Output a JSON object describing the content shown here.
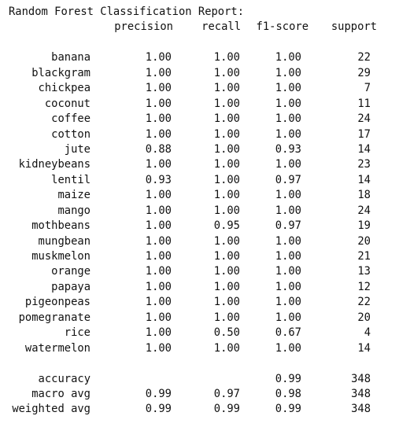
{
  "report": {
    "title": "Random Forest Classification Report:",
    "headers": {
      "precision": "precision",
      "recall": "recall",
      "f1": "f1-score",
      "support": "support"
    },
    "rows": [
      {
        "label": "banana",
        "precision": "1.00",
        "recall": "1.00",
        "f1": "1.00",
        "support": "22"
      },
      {
        "label": "blackgram",
        "precision": "1.00",
        "recall": "1.00",
        "f1": "1.00",
        "support": "29"
      },
      {
        "label": "chickpea",
        "precision": "1.00",
        "recall": "1.00",
        "f1": "1.00",
        "support": "7"
      },
      {
        "label": "coconut",
        "precision": "1.00",
        "recall": "1.00",
        "f1": "1.00",
        "support": "11"
      },
      {
        "label": "coffee",
        "precision": "1.00",
        "recall": "1.00",
        "f1": "1.00",
        "support": "24"
      },
      {
        "label": "cotton",
        "precision": "1.00",
        "recall": "1.00",
        "f1": "1.00",
        "support": "17"
      },
      {
        "label": "jute",
        "precision": "0.88",
        "recall": "1.00",
        "f1": "0.93",
        "support": "14"
      },
      {
        "label": "kidneybeans",
        "precision": "1.00",
        "recall": "1.00",
        "f1": "1.00",
        "support": "23"
      },
      {
        "label": "lentil",
        "precision": "0.93",
        "recall": "1.00",
        "f1": "0.97",
        "support": "14"
      },
      {
        "label": "maize",
        "precision": "1.00",
        "recall": "1.00",
        "f1": "1.00",
        "support": "18"
      },
      {
        "label": "mango",
        "precision": "1.00",
        "recall": "1.00",
        "f1": "1.00",
        "support": "24"
      },
      {
        "label": "mothbeans",
        "precision": "1.00",
        "recall": "0.95",
        "f1": "0.97",
        "support": "19"
      },
      {
        "label": "mungbean",
        "precision": "1.00",
        "recall": "1.00",
        "f1": "1.00",
        "support": "20"
      },
      {
        "label": "muskmelon",
        "precision": "1.00",
        "recall": "1.00",
        "f1": "1.00",
        "support": "21"
      },
      {
        "label": "orange",
        "precision": "1.00",
        "recall": "1.00",
        "f1": "1.00",
        "support": "13"
      },
      {
        "label": "papaya",
        "precision": "1.00",
        "recall": "1.00",
        "f1": "1.00",
        "support": "12"
      },
      {
        "label": "pigeonpeas",
        "precision": "1.00",
        "recall": "1.00",
        "f1": "1.00",
        "support": "22"
      },
      {
        "label": "pomegranate",
        "precision": "1.00",
        "recall": "1.00",
        "f1": "1.00",
        "support": "20"
      },
      {
        "label": "rice",
        "precision": "1.00",
        "recall": "0.50",
        "f1": "0.67",
        "support": "4"
      },
      {
        "label": "watermelon",
        "precision": "1.00",
        "recall": "1.00",
        "f1": "1.00",
        "support": "14"
      }
    ],
    "summary": [
      {
        "label": "accuracy",
        "precision": "",
        "recall": "",
        "f1": "0.99",
        "support": "348"
      },
      {
        "label": "macro avg",
        "precision": "0.99",
        "recall": "0.97",
        "f1": "0.98",
        "support": "348"
      },
      {
        "label": "weighted avg",
        "precision": "0.99",
        "recall": "0.99",
        "f1": "0.99",
        "support": "348"
      }
    ]
  }
}
